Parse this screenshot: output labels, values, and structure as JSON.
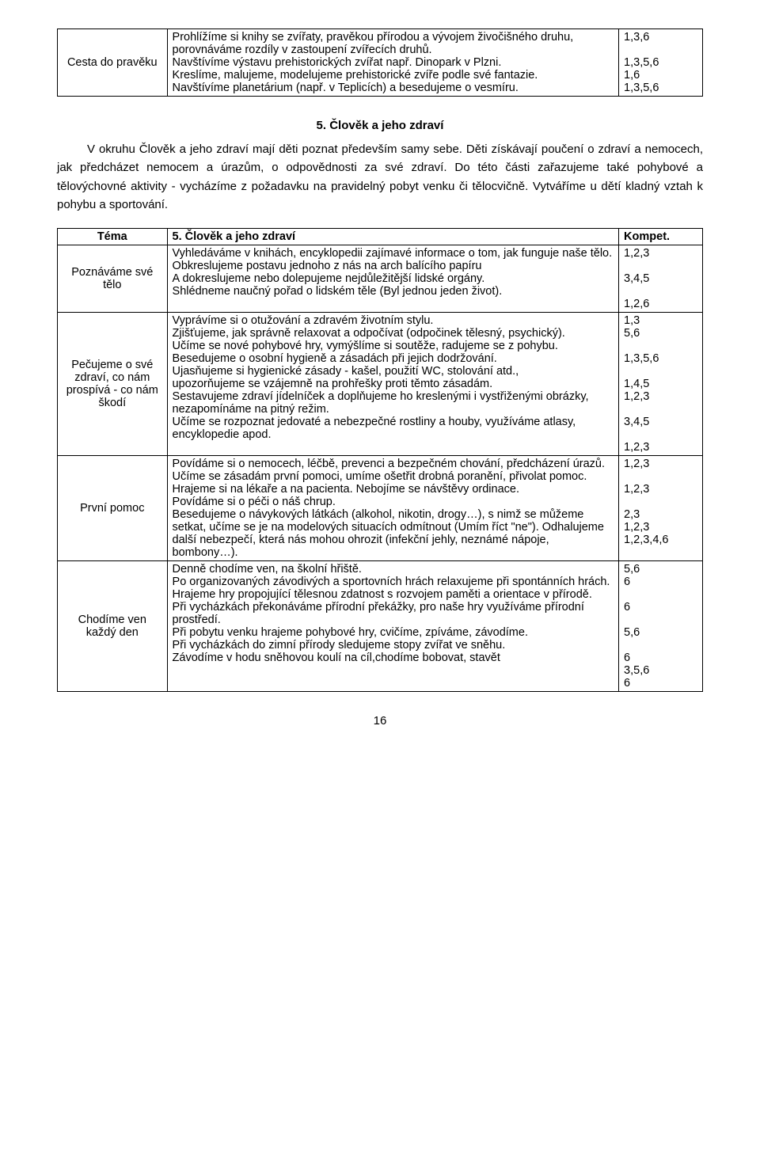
{
  "topTable": {
    "leftLabel": "Cesta do pravěku",
    "midText": "Prohlížíme si knihy se zvířaty, pravěkou přírodou a vývojem živočišného druhu, porovnáváme rozdíly v zastoupení zvířecích druhů.\nNavštívíme výstavu prehistorických zvířat např. Dinopark v Plzni.\nKreslíme, malujeme, modelujeme prehistorické zvíře podle své fantazie.\nNavštívíme planetárium (např. v Teplicích) a besedujeme o vesmíru.",
    "rightText": "1,3,6\n\n1,3,5,6\n1,6\n1,3,5,6"
  },
  "section": {
    "heading": "5. Člověk a jeho zdraví",
    "para": "V okruhu Člověk a jeho zdraví mají děti poznat především samy sebe. Děti získávají poučení o zdraví a nemocech, jak předcházet nemocem a úrazům, o odpovědnosti za své zdraví. Do této části zařazujeme také pohybové a tělovýchovné aktivity - vycházíme z požadavku na pravidelný pobyt venku či tělocvičně. Vytváříme u dětí kladný vztah k pohybu a sportování."
  },
  "mainTable": {
    "header": {
      "left": "Téma",
      "mid": "5. Člověk a jeho zdraví",
      "right": "Kompet."
    },
    "rows": [
      {
        "left": "Poznáváme své tělo",
        "mid": "Vyhledáváme v knihách, encyklopedii zajímavé informace o tom, jak funguje naše tělo.\nObkreslujeme postavu jednoho z nás na arch balícího papíru\nA dokreslujeme nebo dolepujeme nejdůležitější lidské orgány.\nShlédneme naučný pořad o lidském těle (Byl jednou jeden život).",
        "right": "1,2,3\n\n3,4,5\n\n1,2,6"
      },
      {
        "left": "Pečujeme o své zdraví, co nám prospívá - co nám škodí",
        "mid": "Vyprávíme si o otužování a zdravém životním stylu.\nZjišťujeme, jak správně relaxovat a odpočívat (odpočinek tělesný, psychický).\nUčíme se nové pohybové hry, vymýšlíme si soutěže, radujeme se z pohybu.\nBesedujeme o osobní hygieně a zásadách při jejich dodržování.\nUjasňujeme si hygienické zásady - kašel, použití WC, stolování atd.,\nupozorňujeme se vzájemně na prohřešky proti těmto zásadám.\nSestavujeme zdraví jídelníček a doplňujeme ho kreslenými i vystřiženými obrázky, nezapomínáme na pitný režim.\nUčíme se rozpoznat jedovaté a nebezpečné rostliny a houby, využíváme atlasy, encyklopedie apod.",
        "right": "1,3\n5,6\n\n1,3,5,6\n\n1,4,5\n1,2,3\n\n3,4,5\n\n1,2,3"
      },
      {
        "left": "První pomoc",
        "mid": "Povídáme si o nemocech, léčbě, prevenci a bezpečném chování, předcházení úrazů.\nUčíme se zásadám první pomoci, umíme ošetřit drobná poranění, přivolat pomoc.\nHrajeme si na lékaře a na pacienta. Nebojíme se návštěvy ordinace.\nPovídáme si o péči o náš chrup.\nBesedujeme o návykových látkách (alkohol, nikotin, drogy…), s nimž se můžeme setkat, učíme se je na modelových situacích odmítnout (Umím říct \"ne\"). Odhalujeme další nebezpečí, která nás mohou ohrozit (infekční jehly, neznámé nápoje, bombony…).",
        "right": "1,2,3\n\n1,2,3\n\n2,3\n1,2,3\n1,2,3,4,6"
      },
      {
        "left": "Chodíme ven každý den",
        "mid": "Denně chodíme ven, na školní hřiště.\nPo organizovaných závodivých a sportovních hrách relaxujeme při spontánních hrách.\nHrajeme hry propojující tělesnou zdatnost s rozvojem paměti a orientace v přírodě.\nPři vycházkách překonáváme přírodní překážky, pro naše hry využíváme přírodní prostředí.\nPři pobytu venku hrajeme pohybové hry, cvičíme, zpíváme, závodíme.\nPři vycházkách do zimní přírody sledujeme stopy zvířat ve sněhu.\nZávodíme v hodu sněhovou koulí na cíl,chodíme bobovat, stavět",
        "right": "5,6\n6\n\n6\n\n5,6\n\n6\n3,5,6\n6"
      }
    ]
  },
  "pageNumber": "16"
}
